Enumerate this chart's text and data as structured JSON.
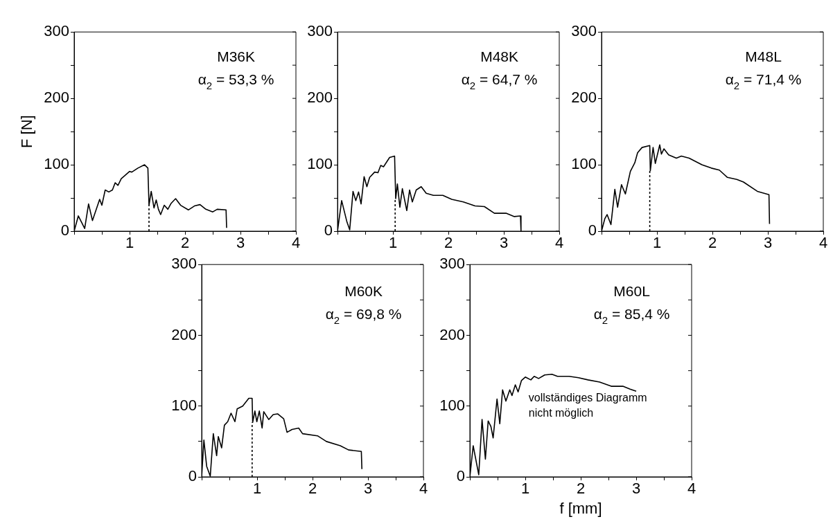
{
  "chart_data": [
    {
      "type": "line",
      "ylabel": "F [N]",
      "annotations": [
        "M36K",
        "α$_{2}$ = 53,3 %"
      ],
      "legend": false,
      "grid": false,
      "marker": "none",
      "xlim": [
        0,
        4
      ],
      "xticks": [
        {
          "value": 0,
          "label": null
        },
        {
          "value": 0.5,
          "label": null
        },
        1,
        {
          "value": 1.5,
          "label": null
        },
        2,
        {
          "value": 2.5,
          "label": null
        },
        3,
        {
          "value": 3.5,
          "label": null
        },
        4
      ],
      "ylim": [
        0,
        300
      ],
      "yticks": [
        0,
        {
          "value": 50,
          "label": null
        },
        100,
        {
          "value": 150,
          "label": null
        },
        200,
        {
          "value": 250,
          "label": null
        },
        300
      ],
      "series": [
        {
          "color": "#000000",
          "line_style": "solid",
          "x": [
            0,
            0.075,
            0.19,
            0.26,
            0.33,
            0.46,
            0.5,
            0.56,
            0.625,
            0.69,
            0.74,
            0.79,
            0.85,
            1.0,
            1.04,
            1.15,
            1.27,
            1.33,
            1.35,
            1.39,
            1.44,
            1.48,
            1.52,
            1.56,
            1.625,
            1.69,
            1.75,
            1.83,
            1.92,
            2.06,
            2.17,
            2.27,
            2.375,
            2.5,
            2.58,
            2.74,
            2.75
          ],
          "values": [
            0,
            23,
            4,
            41,
            16,
            48,
            39,
            62,
            59,
            62,
            73,
            69,
            79,
            90,
            89,
            95,
            100,
            95,
            39,
            60,
            35,
            47,
            33,
            25,
            39,
            33,
            42,
            49,
            39,
            32,
            38,
            40,
            33,
            29,
            33,
            32,
            5
          ]
        },
        {
          "color": "#000000",
          "line_style": "dashed",
          "x": [
            1.35,
            1.35
          ],
          "values": [
            0,
            39
          ]
        }
      ]
    },
    {
      "type": "line",
      "annotations": [
        "M48K",
        "α$_{2}$ = 64,7 %"
      ],
      "legend": false,
      "grid": false,
      "marker": "none",
      "xlim": [
        0,
        4
      ],
      "xticks": [
        {
          "value": 0,
          "label": null
        },
        {
          "value": 0.5,
          "label": null
        },
        1,
        {
          "value": 1.5,
          "label": null
        },
        2,
        {
          "value": 2.5,
          "label": null
        },
        3,
        {
          "value": 3.5,
          "label": null
        },
        4
      ],
      "ylim": [
        0,
        300
      ],
      "yticks": [
        0,
        {
          "value": 50,
          "label": null
        },
        100,
        {
          "value": 150,
          "label": null
        },
        200,
        {
          "value": 250,
          "label": null
        },
        300
      ],
      "series": [
        {
          "color": "#000000",
          "line_style": "solid",
          "x": [
            0,
            0.075,
            0.17,
            0.22,
            0.28,
            0.33,
            0.38,
            0.425,
            0.48,
            0.53,
            0.58,
            0.67,
            0.73,
            0.78,
            0.83,
            0.94,
            1.03,
            1.05,
            1.08,
            1.125,
            1.17,
            1.25,
            1.3,
            1.35,
            1.42,
            1.51,
            1.6,
            1.73,
            1.9,
            2.06,
            2.27,
            2.48,
            2.65,
            2.83,
            3.04,
            3.19,
            3.3,
            3.31
          ],
          "values": [
            0,
            46,
            14,
            2,
            60,
            46,
            59,
            41,
            82,
            67,
            81,
            89,
            88,
            99,
            97,
            111,
            113,
            49,
            71,
            36,
            64,
            31,
            62,
            44,
            62,
            67,
            57,
            54,
            54,
            48,
            44,
            38,
            37,
            27,
            27,
            22,
            23,
            0
          ]
        },
        {
          "color": "#000000",
          "line_style": "dashed",
          "x": [
            1.04,
            1.04
          ],
          "values": [
            0,
            49
          ]
        }
      ]
    },
    {
      "type": "line",
      "annotations": [
        "M48L",
        "α$_{2}$ = 71,4 %"
      ],
      "legend": false,
      "grid": false,
      "marker": "none",
      "xlim": [
        0,
        4
      ],
      "xticks": [
        {
          "value": 0,
          "label": null
        },
        {
          "value": 0.5,
          "label": null
        },
        1,
        {
          "value": 1.5,
          "label": null
        },
        2,
        {
          "value": 2.5,
          "label": null
        },
        3,
        {
          "value": 3.5,
          "label": null
        },
        4
      ],
      "ylim": [
        0,
        300
      ],
      "yticks": [
        0,
        {
          "value": 50,
          "label": null
        },
        100,
        {
          "value": 150,
          "label": null
        },
        200,
        {
          "value": 250,
          "label": null
        },
        300
      ],
      "series": [
        {
          "color": "#000000",
          "line_style": "solid",
          "x": [
            0,
            0.06,
            0.1,
            0.17,
            0.24,
            0.29,
            0.36,
            0.43,
            0.52,
            0.6,
            0.65,
            0.73,
            0.87,
            0.88,
            0.93,
            0.97,
            1.01,
            1.05,
            1.08,
            1.125,
            1.21,
            1.35,
            1.44,
            1.58,
            1.81,
            1.98,
            2.125,
            2.27,
            2.44,
            2.56,
            2.81,
            3.02,
            3.03
          ],
          "values": [
            0,
            19,
            25,
            10,
            63,
            36,
            70,
            56,
            90,
            103,
            118,
            126,
            129,
            91,
            126,
            102,
            116,
            130,
            116,
            124,
            115,
            110,
            113,
            110,
            100,
            95,
            92,
            81,
            78,
            74,
            60,
            55,
            11
          ]
        },
        {
          "color": "#000000",
          "line_style": "dashed",
          "x": [
            0.87,
            0.87
          ],
          "values": [
            0,
            91
          ]
        }
      ]
    },
    {
      "type": "line",
      "annotations": [
        "M60K",
        "α$_{2}$ = 69,8 %"
      ],
      "legend": false,
      "grid": false,
      "marker": "none",
      "xlim": [
        0,
        4
      ],
      "xticks": [
        {
          "value": 0,
          "label": null
        },
        {
          "value": 0.5,
          "label": null
        },
        1,
        {
          "value": 1.5,
          "label": null
        },
        2,
        {
          "value": 2.5,
          "label": null
        },
        3,
        {
          "value": 3.5,
          "label": null
        },
        4
      ],
      "ylim": [
        0,
        300
      ],
      "yticks": [
        0,
        {
          "value": 50,
          "label": null
        },
        100,
        {
          "value": 150,
          "label": null
        },
        200,
        {
          "value": 250,
          "label": null
        },
        300
      ],
      "series": [
        {
          "color": "#000000",
          "line_style": "solid",
          "x": [
            0,
            0.04,
            0.09,
            0.155,
            0.21,
            0.27,
            0.3,
            0.36,
            0.41,
            0.47,
            0.53,
            0.6,
            0.64,
            0.74,
            0.85,
            0.91,
            0.92,
            0.96,
            0.995,
            1.04,
            1.09,
            1.12,
            1.21,
            1.29,
            1.37,
            1.48,
            1.54,
            1.63,
            1.75,
            1.82,
            2.09,
            2.25,
            2.5,
            2.65,
            2.88,
            2.89
          ],
          "values": [
            0,
            52,
            15,
            1,
            61,
            30,
            57,
            41,
            73,
            78,
            90,
            78,
            96,
            100,
            111,
            111,
            77,
            93,
            78,
            93,
            69,
            92,
            81,
            88,
            89,
            82,
            63,
            67,
            69,
            61,
            58,
            50,
            44,
            38,
            36,
            11
          ]
        },
        {
          "color": "#000000",
          "line_style": "dashed",
          "x": [
            0.91,
            0.91
          ],
          "values": [
            0,
            77
          ]
        }
      ]
    },
    {
      "type": "line",
      "xlabel": "f [mm]",
      "annotations": [
        "M60L",
        "α$_{2}$ = 85,4 %",
        "vollständiges Diagramm nicht möglich"
      ],
      "legend": false,
      "grid": false,
      "marker": "none",
      "xlim": [
        0,
        4
      ],
      "xticks": [
        {
          "value": 0,
          "label": null
        },
        {
          "value": 0.5,
          "label": null
        },
        1,
        {
          "value": 1.5,
          "label": null
        },
        2,
        {
          "value": 2.5,
          "label": null
        },
        3,
        {
          "value": 3.5,
          "label": null
        },
        4
      ],
      "ylim": [
        0,
        300
      ],
      "yticks": [
        0,
        {
          "value": 50,
          "label": null
        },
        100,
        {
          "value": 150,
          "label": null
        },
        200,
        {
          "value": 250,
          "label": null
        },
        300
      ],
      "series": [
        {
          "color": "#000000",
          "line_style": "solid",
          "x": [
            0,
            0.06,
            0.16,
            0.22,
            0.28,
            0.33,
            0.38,
            0.42,
            0.49,
            0.54,
            0.59,
            0.65,
            0.72,
            0.76,
            0.82,
            0.87,
            0.93,
            1.0,
            1.1,
            1.16,
            1.24,
            1.35,
            1.48,
            1.58,
            1.79,
            1.96,
            2.13,
            2.34,
            2.55,
            2.76,
            2.89,
            3.0
          ],
          "values": [
            0,
            44,
            3,
            81,
            25,
            79,
            71,
            55,
            110,
            75,
            123,
            107,
            123,
            115,
            130,
            120,
            136,
            141,
            137,
            142,
            139,
            144,
            145,
            142,
            142,
            140,
            137,
            134,
            128,
            128,
            124,
            121
          ]
        }
      ]
    }
  ]
}
